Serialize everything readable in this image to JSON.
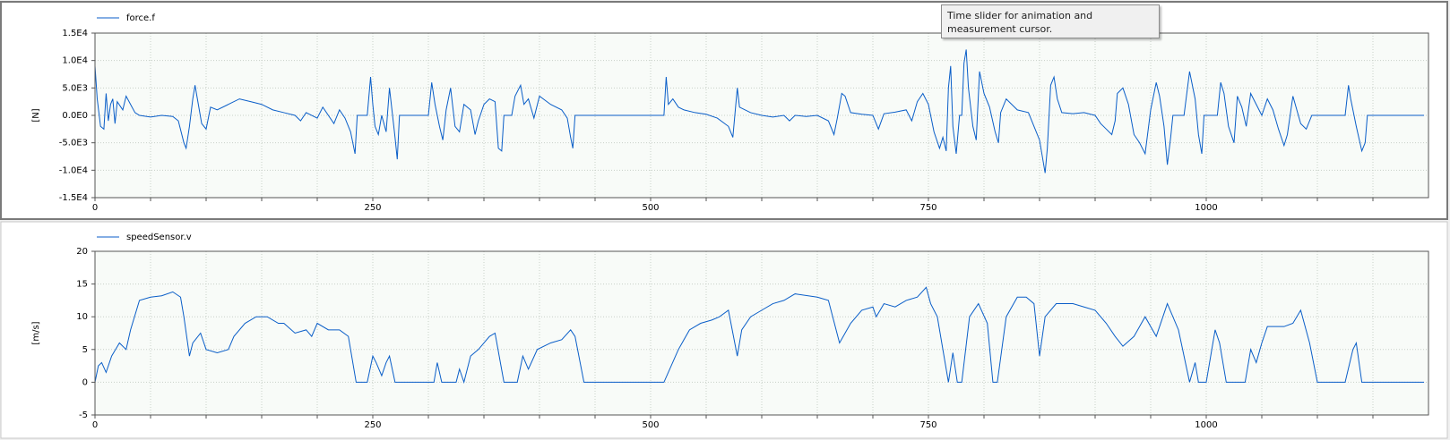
{
  "tooltip": "Time slider for animation and measurement cursor.",
  "chart_data": [
    {
      "type": "line",
      "ylabel": "[N]",
      "x": [
        0,
        2,
        5,
        8,
        10,
        12,
        14,
        16,
        18,
        20,
        25,
        28,
        32,
        36,
        40,
        50,
        60,
        70,
        75,
        80,
        82,
        85,
        88,
        90,
        93,
        96,
        100,
        104,
        110,
        120,
        130,
        140,
        150,
        160,
        170,
        180,
        185,
        190,
        200,
        205,
        210,
        215,
        220,
        225,
        230,
        234,
        236,
        245,
        248,
        250,
        252,
        255,
        258,
        262,
        265,
        270,
        272,
        274,
        300,
        303,
        306,
        310,
        313,
        316,
        320,
        324,
        328,
        332,
        338,
        342,
        345,
        350,
        355,
        360,
        363,
        366,
        368,
        375,
        378,
        383,
        386,
        390,
        395,
        400,
        410,
        420,
        425,
        428,
        430,
        432,
        512,
        514,
        516,
        520,
        525,
        530,
        540,
        550,
        560,
        570,
        574,
        578,
        580,
        590,
        600,
        610,
        620,
        625,
        630,
        640,
        650,
        660,
        665,
        668,
        672,
        675,
        680,
        690,
        700,
        705,
        710,
        720,
        730,
        735,
        740,
        745,
        750,
        755,
        760,
        763,
        766,
        768,
        770,
        772,
        775,
        778,
        780,
        782,
        784,
        786,
        790,
        793,
        796,
        800,
        805,
        810,
        813,
        815,
        820,
        830,
        840,
        845,
        850,
        855,
        857,
        860,
        863,
        866,
        870,
        880,
        890,
        900,
        905,
        910,
        915,
        918,
        920,
        925,
        930,
        935,
        940,
        945,
        950,
        955,
        958,
        962,
        965,
        968,
        970,
        980,
        985,
        990,
        993,
        996,
        998,
        1010,
        1013,
        1016,
        1020,
        1025,
        1028,
        1032,
        1036,
        1040,
        1045,
        1050,
        1055,
        1060,
        1065,
        1070,
        1073,
        1078,
        1085,
        1090,
        1095,
        1100,
        1125,
        1128,
        1130,
        1135,
        1140,
        1143,
        1145,
        1196
      ],
      "series": [
        {
          "name": "force.f",
          "color": "#0a5ec8",
          "values": [
            9000,
            3000,
            -2000,
            -2500,
            4000,
            -1000,
            2000,
            3000,
            -1500,
            2500,
            1000,
            3500,
            2000,
            500,
            0,
            -300,
            0,
            -200,
            -1000,
            -5000,
            -6000,
            -2000,
            3000,
            5500,
            2000,
            -1500,
            -2500,
            1500,
            1000,
            2000,
            3000,
            2500,
            2000,
            1000,
            500,
            0,
            -1000,
            500,
            -500,
            1500,
            0,
            -1500,
            1000,
            -500,
            -3000,
            -7000,
            0,
            0,
            7000,
            2000,
            -2000,
            -3500,
            0,
            -3000,
            5000,
            -4000,
            -8000,
            0,
            0,
            6000,
            2000,
            -2000,
            -4500,
            1000,
            5000,
            -2000,
            -3000,
            2000,
            1000,
            -3500,
            -1000,
            2000,
            3000,
            2500,
            -6000,
            -6500,
            0,
            0,
            3500,
            5500,
            2000,
            3000,
            -500,
            3500,
            2000,
            1000,
            -500,
            -4000,
            -6000,
            0,
            0,
            7000,
            2000,
            3000,
            1500,
            1000,
            500,
            200,
            -500,
            -2000,
            -4000,
            5000,
            1500,
            500,
            0,
            -300,
            0,
            -1000,
            0,
            -200,
            0,
            -1000,
            -3500,
            -500,
            4000,
            3500,
            500,
            200,
            0,
            -2500,
            300,
            600,
            1000,
            -1000,
            2500,
            4000,
            2000,
            -3000,
            -6000,
            -4000,
            -6500,
            5000,
            9000,
            -2000,
            -7000,
            0,
            0,
            9500,
            12000,
            5000,
            -2000,
            -4500,
            8000,
            4000,
            1500,
            -3000,
            -5000,
            500,
            3000,
            1000,
            500,
            -2000,
            -4500,
            -10500,
            -6000,
            5500,
            7000,
            3000,
            500,
            300,
            500,
            0,
            -1500,
            -2500,
            -3500,
            -1000,
            4000,
            5000,
            2000,
            -3500,
            -5000,
            -7000,
            1000,
            6000,
            3500,
            -2000,
            -9000,
            -4000,
            0,
            0,
            8000,
            3000,
            -3500,
            -7000,
            0,
            0,
            6000,
            4000,
            -2000,
            -5000,
            3500,
            1500,
            -2000,
            4000,
            2000,
            0,
            3000,
            1000,
            -2500,
            -5500,
            -3500,
            3500,
            -1500,
            -2500,
            0,
            0,
            0,
            5500,
            3000,
            -2000,
            -6500,
            -5000,
            0,
            0
          ]
        }
      ],
      "xlim": [
        0,
        1200
      ],
      "ylim": [
        -15000,
        15000
      ],
      "xticks": [
        0,
        {
          "value": 50,
          "label": null
        },
        {
          "value": 100,
          "label": null
        },
        {
          "value": 150,
          "label": null
        },
        {
          "value": 200,
          "label": null
        },
        250,
        {
          "value": 300,
          "label": null
        },
        {
          "value": 350,
          "label": null
        },
        {
          "value": 400,
          "label": null
        },
        {
          "value": 450,
          "label": null
        },
        500,
        {
          "value": 550,
          "label": null
        },
        {
          "value": 600,
          "label": null
        },
        {
          "value": 650,
          "label": null
        },
        {
          "value": 700,
          "label": null
        },
        750,
        {
          "value": 800,
          "label": null
        },
        {
          "value": 850,
          "label": null
        },
        {
          "value": 900,
          "label": null
        },
        {
          "value": 950,
          "label": null
        },
        1000,
        {
          "value": 1050,
          "label": null
        },
        {
          "value": 1100,
          "label": null
        },
        {
          "value": 1150,
          "label": null
        }
      ],
      "yticks": [
        {
          "value": -15000,
          "label": "-1.5E4"
        },
        {
          "value": -10000,
          "label": "-1.0E4"
        },
        {
          "value": -5000,
          "label": "-5.0E3"
        },
        {
          "value": 0,
          "label": "0.0E0"
        },
        {
          "value": 5000,
          "label": "5.0E3"
        },
        {
          "value": 10000,
          "label": "1.0E4"
        },
        {
          "value": 15000,
          "label": "1.5E4"
        }
      ],
      "grid": true,
      "legend": "top-left"
    },
    {
      "type": "line",
      "ylabel": "[m/s]",
      "x": [
        0,
        3,
        6,
        10,
        15,
        22,
        28,
        32,
        40,
        50,
        60,
        70,
        77,
        80,
        85,
        88,
        95,
        100,
        110,
        120,
        125,
        135,
        145,
        155,
        165,
        170,
        180,
        190,
        195,
        200,
        210,
        220,
        228,
        235,
        245,
        250,
        253,
        258,
        262,
        265,
        270,
        305,
        308,
        312,
        325,
        328,
        332,
        338,
        345,
        355,
        360,
        368,
        380,
        385,
        390,
        398,
        410,
        420,
        428,
        432,
        440,
        512,
        525,
        535,
        545,
        555,
        562,
        570,
        578,
        582,
        590,
        600,
        610,
        620,
        630,
        650,
        660,
        670,
        680,
        690,
        700,
        703,
        710,
        720,
        730,
        740,
        748,
        752,
        758,
        762,
        768,
        772,
        776,
        780,
        787,
        795,
        803,
        808,
        812,
        820,
        830,
        838,
        845,
        850,
        855,
        865,
        880,
        890,
        900,
        910,
        918,
        925,
        935,
        945,
        955,
        965,
        975,
        985,
        990,
        993,
        1000,
        1008,
        1012,
        1018,
        1035,
        1040,
        1045,
        1050,
        1055,
        1070,
        1078,
        1085,
        1093,
        1100,
        1125,
        1132,
        1135,
        1140,
        1196
      ],
      "series": [
        {
          "name": "speedSensor.v",
          "color": "#0a5ec8",
          "values": [
            0,
            2.5,
            3,
            1.5,
            4,
            6,
            5,
            8,
            12.5,
            13,
            13.2,
            13.8,
            13,
            10,
            4,
            6,
            7.5,
            5,
            4.5,
            5,
            7,
            9,
            10,
            10,
            9,
            9,
            7.5,
            8,
            7,
            9,
            8,
            8,
            7,
            0,
            0,
            4,
            3,
            1,
            3,
            4,
            0,
            0,
            3,
            0,
            0,
            2,
            0,
            4,
            5,
            7,
            7.5,
            0,
            0,
            4,
            2,
            5,
            6,
            6.5,
            8,
            7,
            0,
            0,
            5,
            8,
            9,
            9.5,
            10,
            11,
            4,
            8,
            10,
            11,
            12,
            12.5,
            13.5,
            13,
            12.5,
            6,
            9,
            11,
            11.5,
            10,
            12,
            11.5,
            12.5,
            13,
            14.5,
            12,
            10,
            6,
            0,
            4.5,
            0,
            0,
            10,
            12,
            9,
            0,
            0,
            10,
            13,
            13,
            12,
            4,
            10,
            12,
            12,
            11.5,
            11,
            9,
            7,
            5.5,
            7,
            10,
            7,
            12,
            8,
            0,
            3,
            0,
            0,
            8,
            6,
            0,
            0,
            5,
            3,
            6,
            8.5,
            8.5,
            9,
            11,
            6,
            0,
            0,
            5,
            6,
            0,
            0
          ]
        }
      ],
      "xlim": [
        0,
        1200
      ],
      "ylim": [
        -5,
        20
      ],
      "xticks": [
        0,
        {
          "value": 50,
          "label": null
        },
        {
          "value": 100,
          "label": null
        },
        {
          "value": 150,
          "label": null
        },
        {
          "value": 200,
          "label": null
        },
        250,
        {
          "value": 300,
          "label": null
        },
        {
          "value": 350,
          "label": null
        },
        {
          "value": 400,
          "label": null
        },
        {
          "value": 450,
          "label": null
        },
        500,
        {
          "value": 550,
          "label": null
        },
        {
          "value": 600,
          "label": null
        },
        {
          "value": 650,
          "label": null
        },
        {
          "value": 700,
          "label": null
        },
        750,
        {
          "value": 800,
          "label": null
        },
        {
          "value": 850,
          "label": null
        },
        {
          "value": 900,
          "label": null
        },
        {
          "value": 950,
          "label": null
        },
        1000,
        {
          "value": 1050,
          "label": null
        },
        {
          "value": 1100,
          "label": null
        },
        {
          "value": 1150,
          "label": null
        }
      ],
      "yticks": [
        -5,
        0,
        5,
        10,
        15,
        20
      ],
      "grid": true,
      "legend": "top-left"
    }
  ]
}
